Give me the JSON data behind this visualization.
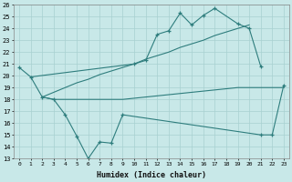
{
  "line1_x": [
    0,
    1,
    10,
    11,
    12,
    13,
    14,
    15,
    16,
    17,
    19,
    20,
    21
  ],
  "line1_y": [
    20.7,
    19.9,
    21.0,
    21.3,
    23.5,
    23.8,
    25.3,
    24.3,
    25.1,
    25.7,
    24.4,
    24.0,
    20.8
  ],
  "line2_x": [
    2,
    3,
    4,
    5,
    6,
    7,
    8,
    9,
    21,
    22,
    23
  ],
  "line2_y": [
    18.2,
    18.0,
    16.7,
    14.9,
    13.0,
    14.4,
    14.3,
    16.7,
    15.0,
    15.0,
    19.2
  ],
  "line_flat_x": [
    1,
    2,
    3,
    4,
    5,
    6,
    7,
    8,
    9,
    10,
    11,
    12,
    13,
    14,
    15,
    16,
    17,
    18,
    19,
    20,
    21,
    22,
    23
  ],
  "line_flat_y": [
    19.9,
    18.2,
    18.0,
    18.0,
    18.0,
    18.0,
    18.0,
    18.0,
    18.0,
    18.1,
    18.2,
    18.3,
    18.4,
    18.5,
    18.6,
    18.7,
    18.8,
    18.9,
    19.0,
    19.0,
    19.0,
    19.0,
    19.0
  ],
  "line_trend_x": [
    2,
    3,
    4,
    5,
    6,
    7,
    8,
    9,
    10,
    11,
    12,
    13,
    14,
    15,
    16,
    17,
    18,
    19,
    20
  ],
  "line_trend_y": [
    18.2,
    18.6,
    19.0,
    19.4,
    19.7,
    20.1,
    20.4,
    20.7,
    21.0,
    21.4,
    21.7,
    22.0,
    22.4,
    22.7,
    23.0,
    23.4,
    23.7,
    24.0,
    24.3
  ],
  "color": "#2e7d7d",
  "bg_color": "#c8e8e8",
  "grid_color": "#a8d0d0",
  "ylim": [
    13,
    26
  ],
  "yticks": [
    13,
    14,
    15,
    16,
    17,
    18,
    19,
    20,
    21,
    22,
    23,
    24,
    25,
    26
  ],
  "xticks": [
    0,
    1,
    2,
    3,
    4,
    5,
    6,
    7,
    8,
    9,
    10,
    11,
    12,
    13,
    14,
    15,
    16,
    17,
    18,
    19,
    20,
    21,
    22,
    23
  ],
  "xlabel": "Humidex (Indice chaleur)"
}
